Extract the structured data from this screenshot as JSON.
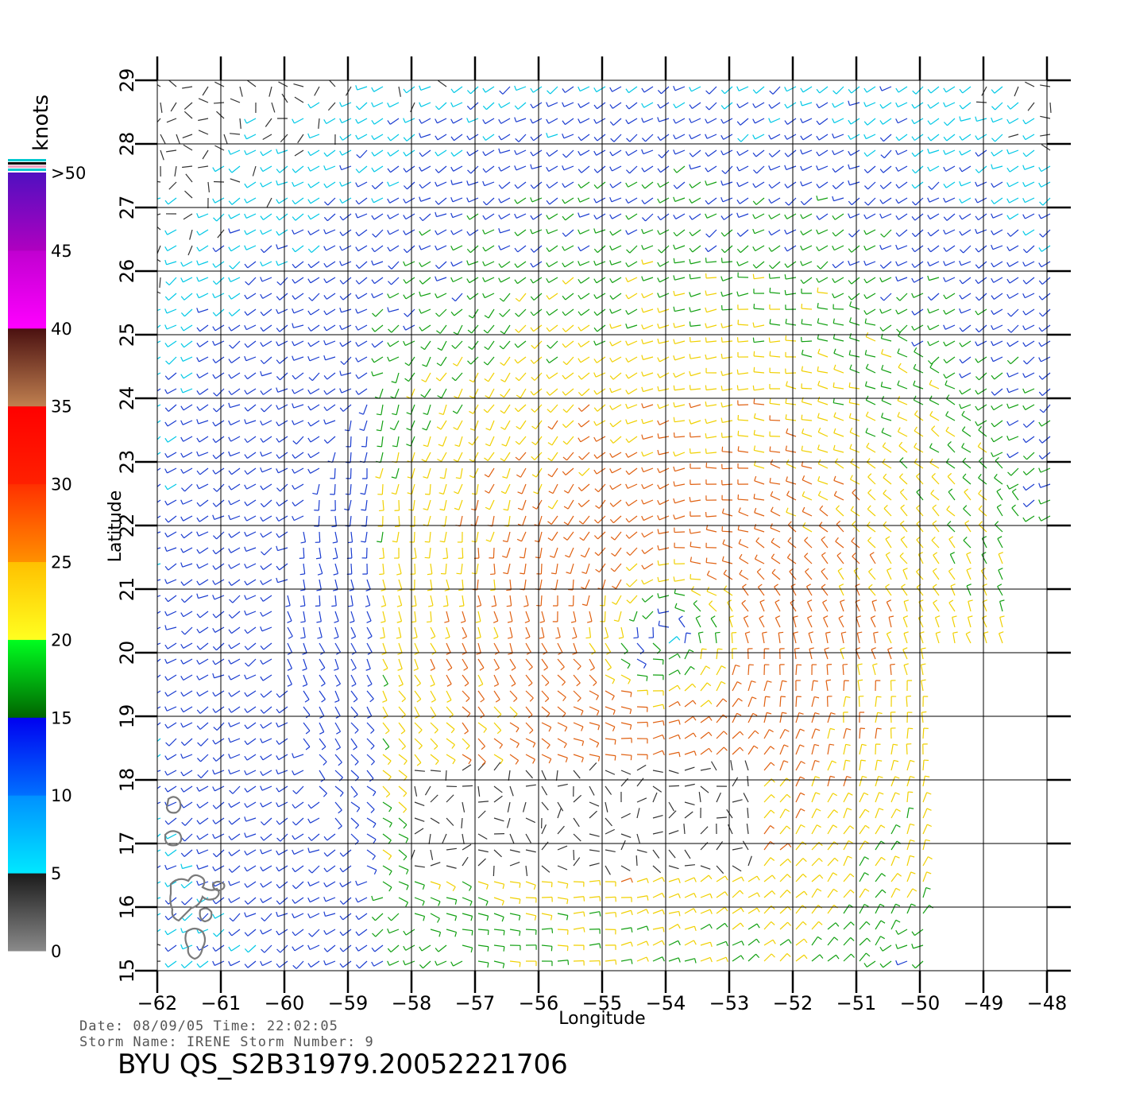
{
  "colorbar": {
    "unit": "knots",
    "labels": [
      ">50",
      "45",
      "40",
      "35",
      "30",
      "25",
      "20",
      "15",
      "10",
      "5",
      "0"
    ],
    "bands": [
      {
        "from": 0,
        "to": 5,
        "colors": [
          "#8a8a8a",
          "#1a1a1a"
        ]
      },
      {
        "from": 5,
        "to": 10,
        "colors": [
          "#00e8ff",
          "#0090ff"
        ]
      },
      {
        "from": 10,
        "to": 15,
        "colors": [
          "#0070ff",
          "#0000f0"
        ]
      },
      {
        "from": 15,
        "to": 20,
        "colors": [
          "#006400",
          "#00ff20"
        ]
      },
      {
        "from": 20,
        "to": 25,
        "colors": [
          "#ffff20",
          "#ffc000"
        ]
      },
      {
        "from": 25,
        "to": 30,
        "colors": [
          "#ff9000",
          "#ff3000"
        ]
      },
      {
        "from": 30,
        "to": 35,
        "colors": [
          "#ff2000",
          "#ff0000"
        ]
      },
      {
        "from": 35,
        "to": 40,
        "colors": [
          "#c08050",
          "#4a1010"
        ]
      },
      {
        "from": 40,
        "to": 45,
        "colors": [
          "#ff00ff",
          "#c000d0"
        ]
      },
      {
        "from": 45,
        "to": 50,
        "colors": [
          "#b000c0",
          "#5010c0"
        ]
      }
    ]
  },
  "map": {
    "x_axis": {
      "label": "Longitude",
      "min": -62,
      "max": -48,
      "ticks": [
        "-62",
        "-61",
        "-60",
        "-59",
        "-58",
        "-57",
        "-56",
        "-55",
        "-54",
        "-53",
        "-52",
        "-51",
        "-50",
        "-49",
        "-48"
      ]
    },
    "y_axis": {
      "label": "Latitude",
      "min": 15,
      "max": 29,
      "ticks": [
        "15",
        "16",
        "17",
        "18",
        "19",
        "20",
        "21",
        "22",
        "23",
        "24",
        "25",
        "26",
        "27",
        "28",
        "29"
      ]
    },
    "grid": true,
    "wind_field": {
      "center": {
        "lon": -54,
        "lat": 20.3
      },
      "peak_knots": 32,
      "speed_colors": {
        "calm": "#333333",
        "light": "#00c8e6",
        "moderate": "#1a3cd0",
        "fresh": "#12a012",
        "strong": "#f0d000",
        "gale": "#e06010"
      }
    }
  },
  "footer": {
    "date_line": "Date: 08/09/05   Time: 22:02:05",
    "storm_line": "Storm  Name: IRENE    Storm  Number: 9",
    "product_id": "BYU  QS_S2B31979.20052221706"
  }
}
